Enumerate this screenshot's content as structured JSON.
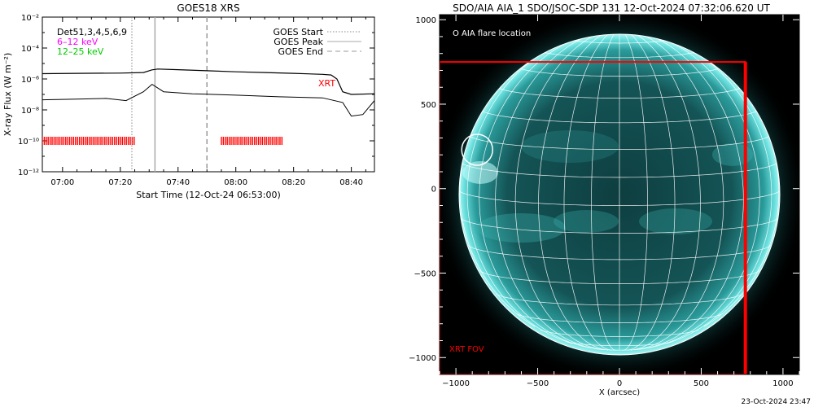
{
  "goes": {
    "title": "GOES18 XRS",
    "ylabel": "X-ray Flux (W m⁻²)",
    "xlabel": "Start Time (12-Oct-24 06:53:00)",
    "dets": "Det51,3,4,5,6,9",
    "band1": "6–12 keV",
    "band2": "12–25 keV",
    "xrt_label": "XRT",
    "legend": [
      "GOES Start",
      "GOES Peak",
      "GOES End"
    ],
    "colors": {
      "band1": "#ff00ff",
      "band2": "#00cc00",
      "xrt": "#ff0000"
    }
  },
  "aia": {
    "title": "SDO/AIA AIA_1 SDO/JSOC-SDP 131 12-Oct-2024 07:32:06.620 UT",
    "flare_loc_label": "O AIA flare location",
    "fov_label": "XRT FOV",
    "xlabel": "X (arcsec)",
    "timestamp": "23-Oct-2024 23:47",
    "colors": {
      "fov": "#ff0000",
      "disk": "#30c8c8"
    }
  },
  "chart_data": [
    {
      "type": "line",
      "title": "GOES18 XRS",
      "xlabel": "Start Time (12-Oct-24 06:53:00)",
      "ylabel": "X-ray Flux (W m⁻²)",
      "yscale": "log",
      "xlim": [
        "06:53",
        "08:48"
      ],
      "ylim": [
        1e-12,
        0.01
      ],
      "x_ticks": [
        "07:00",
        "07:20",
        "07:40",
        "08:00",
        "08:20",
        "08:40"
      ],
      "y_ticks": [
        "10⁻¹²",
        "10⁻¹⁰",
        "10⁻⁸",
        "10⁻⁶",
        "10⁻⁴",
        "10⁻²"
      ],
      "series": [
        {
          "name": "Det51,3,4,5,6,9",
          "x": [
            "06:53",
            "07:05",
            "07:20",
            "07:28",
            "07:31",
            "07:33",
            "07:40",
            "07:50",
            "08:00",
            "08:10",
            "08:20",
            "08:30",
            "08:33",
            "08:35",
            "08:37",
            "08:40",
            "08:48"
          ],
          "y": [
            2.2e-06,
            2.3e-06,
            2.4e-06,
            2.6e-06,
            3.9e-06,
            4.4e-06,
            4e-06,
            3.4e-06,
            2.9e-06,
            2.6e-06,
            2.3e-06,
            2e-06,
            1.8e-06,
            1e-06,
            1.5e-07,
            1e-07,
            1.1e-07
          ]
        },
        {
          "name": "12–25 keV",
          "x": [
            "06:53",
            "07:05",
            "07:15",
            "07:22",
            "07:28",
            "07:31",
            "07:35",
            "07:45",
            "08:00",
            "08:15",
            "08:30",
            "08:37",
            "08:40",
            "08:44",
            "08:48"
          ],
          "y": [
            4.5e-08,
            5e-08,
            5.5e-08,
            4e-08,
            1.5e-07,
            4.5e-07,
            1.5e-07,
            1.1e-07,
            9e-08,
            7e-08,
            6e-08,
            3e-08,
            4e-09,
            5e-09,
            4e-08
          ]
        }
      ],
      "markers": {
        "GOES Start": "07:24",
        "GOES Peak": "07:32",
        "GOES End": "07:50"
      },
      "xrt_coverage": [
        [
          "06:53",
          "07:25"
        ],
        [
          "07:55",
          "08:16"
        ]
      ]
    },
    {
      "type": "image",
      "title": "SDO/AIA AIA_1 SDO/JSOC-SDP 131 12-Oct-2024 07:32:06.620 UT",
      "xlabel": "X (arcsec)",
      "xlim": [
        -1100,
        1100
      ],
      "ylim": [
        -1100,
        1030
      ],
      "x_ticks": [
        -1000,
        -500,
        0,
        500,
        1000
      ],
      "y_ticks": [
        -1000,
        -500,
        0,
        500,
        1000
      ],
      "solar_radius_arcsec": 990,
      "flare_location": [
        -870,
        230
      ],
      "xrt_fov": {
        "x": [
          -1100,
          770
        ],
        "y": [
          -1100,
          750
        ]
      }
    }
  ]
}
